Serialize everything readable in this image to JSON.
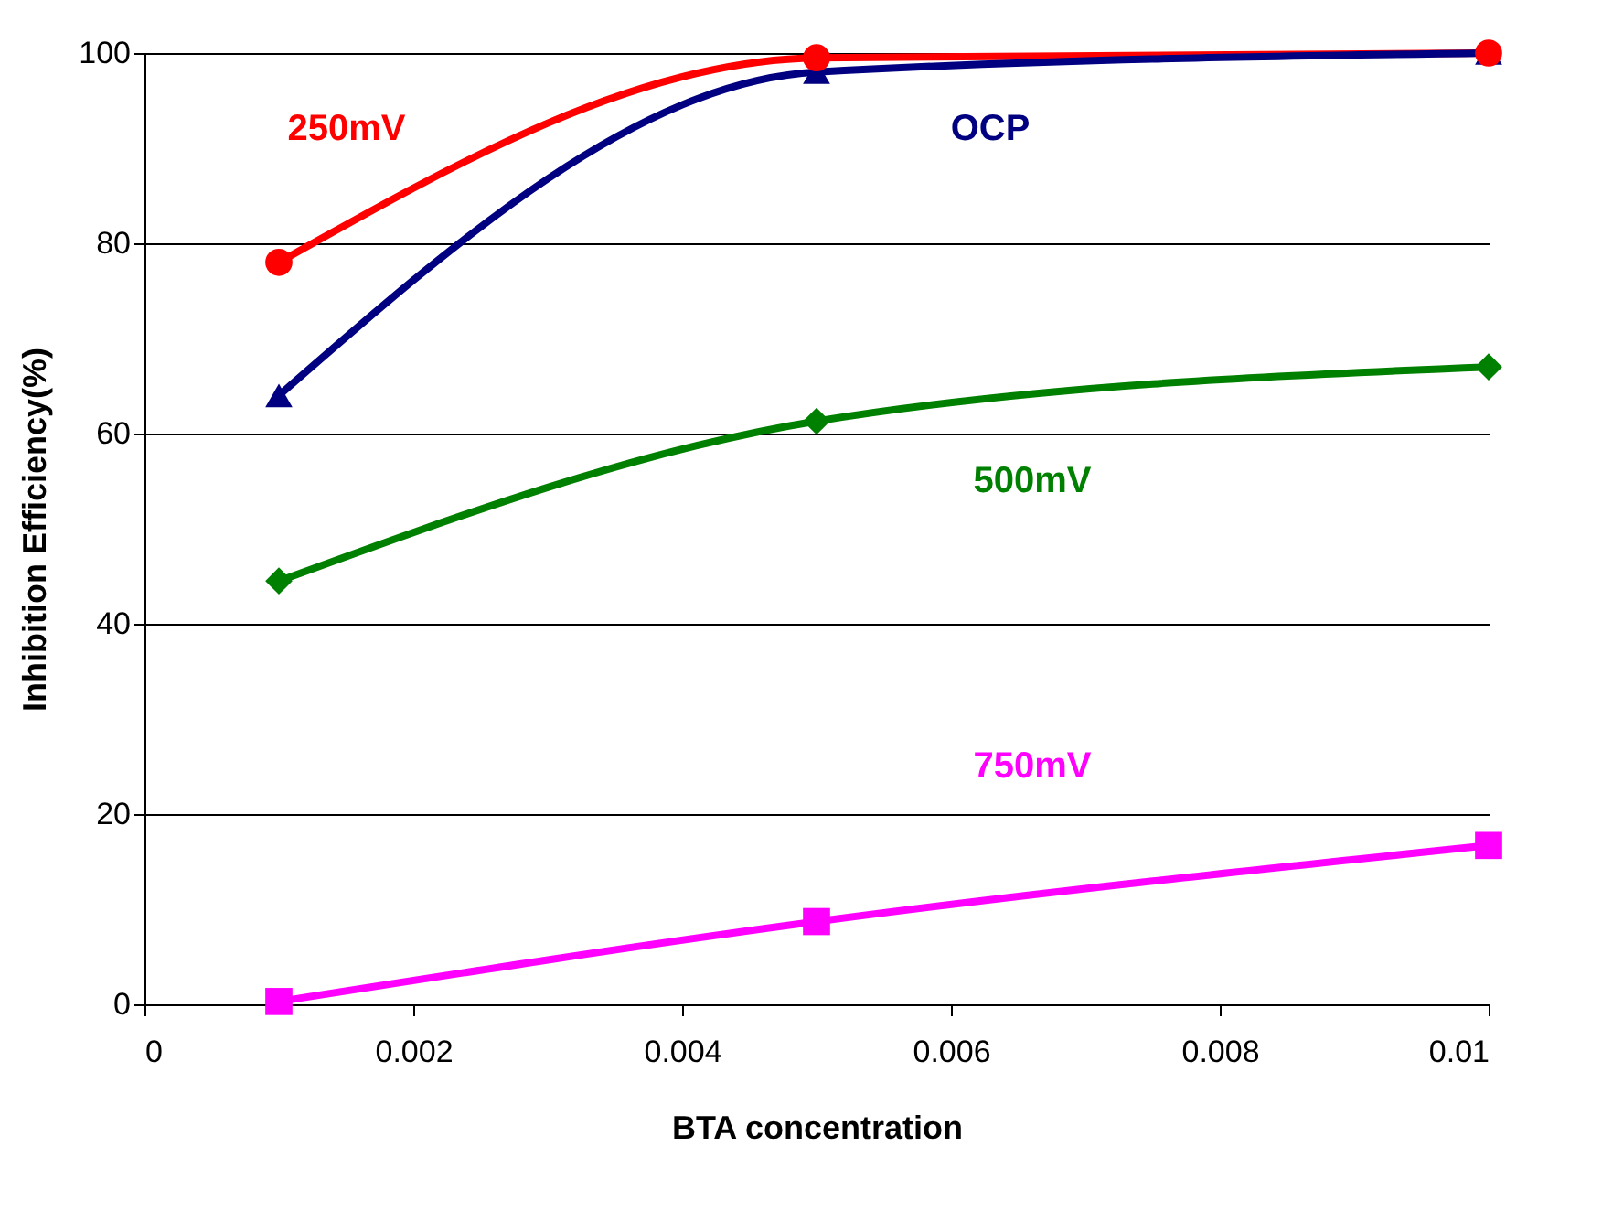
{
  "chart_data": {
    "type": "line",
    "xlabel": "BTA concentration",
    "ylabel": "Inhibition Efficiency(%)",
    "xlim": [
      0,
      0.01
    ],
    "xticks": [
      0,
      0.002,
      0.004,
      0.006,
      0.008,
      0.01
    ],
    "ylim": [
      0,
      100
    ],
    "yticks": [
      0,
      20,
      40,
      60,
      80,
      100
    ],
    "grid": "y",
    "line_style": "solid",
    "series": [
      {
        "name": "250mV",
        "color": "#ff0000",
        "marker": "circle",
        "x": [
          0.001,
          0.005,
          0.01
        ],
        "values": [
          78,
          99.5,
          100
        ]
      },
      {
        "name": "OCP",
        "color": "#000080",
        "marker": "triangle",
        "x": [
          0.001,
          0.005,
          0.01
        ],
        "values": [
          64,
          98,
          100
        ]
      },
      {
        "name": "500mV",
        "color": "#008000",
        "marker": "diamond",
        "x": [
          0.001,
          0.005,
          0.01
        ],
        "values": [
          44.5,
          61.3,
          67
        ]
      },
      {
        "name": "750mV",
        "color": "#ff00ff",
        "marker": "square",
        "x": [
          0.001,
          0.005,
          0.01
        ],
        "values": [
          0.3,
          8.7,
          16.7
        ]
      }
    ]
  }
}
